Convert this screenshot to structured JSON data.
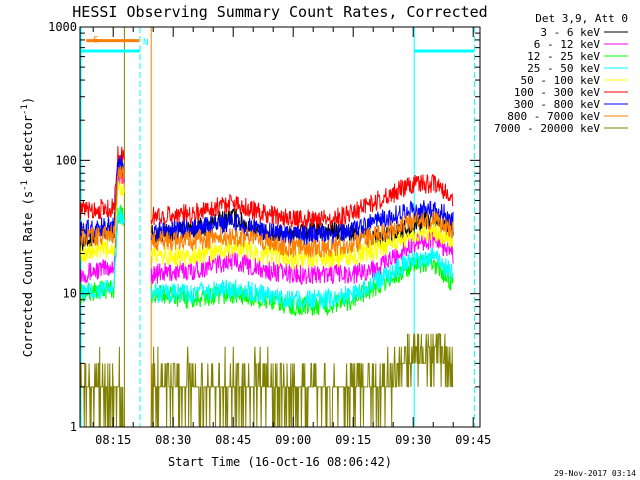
{
  "chart_data": {
    "type": "line",
    "title": "HESSI Observing Summary Count Rates, Corrected",
    "xlabel": "Start Time (16-Oct-16 08:06:42)",
    "ylabel_main": "Corrected Count Rate (s",
    "ylabel_sup1": "-1",
    "ylabel_mid": " detector",
    "ylabel_sup2": "-1",
    "ylabel_end": ")",
    "y_scale": "log",
    "ylim": [
      1,
      1000
    ],
    "xlim_minutes": [
      486.7,
      586.7
    ],
    "x_ticks": [
      {
        "label": "08:15",
        "minute": 495
      },
      {
        "label": "08:30",
        "minute": 510
      },
      {
        "label": "08:45",
        "minute": 525
      },
      {
        "label": "09:00",
        "minute": 540
      },
      {
        "label": "09:15",
        "minute": 555
      },
      {
        "label": "09:30",
        "minute": 570
      },
      {
        "label": "09:45",
        "minute": 585
      }
    ],
    "y_ticks": [
      {
        "label": "1",
        "value": 1
      },
      {
        "label": "10",
        "value": 10
      },
      {
        "label": "100",
        "value": 100
      },
      {
        "label": "1000",
        "value": 1000
      }
    ],
    "legend_header": "Det 3,9, Att 0",
    "legend_position": "right",
    "footer_date": "29-Nov-2017 03:14",
    "gaps_minutes": [
      [
        497.8,
        504.5
      ],
      [
        580.0,
        586.7
      ]
    ],
    "eclipse_minutes": [
      [
        486.7,
        501.7
      ],
      [
        570.0,
        585.3
      ]
    ],
    "flags": [
      {
        "label": "S",
        "color": "#ff7f00",
        "x_minutes": [
          488,
          501.5
        ],
        "level": 790
      },
      {
        "label": "N",
        "color": "#00ffff",
        "x_minutes": [
          486.7,
          501.7
        ],
        "level": 660
      },
      {
        "label": "",
        "color": "#00ffff",
        "x_minutes": [
          570,
          585.3
        ],
        "level": 660
      }
    ],
    "series": [
      {
        "name": "3 - 6 keV",
        "color": "#000000",
        "values": [
          [
            486.7,
            24
          ],
          [
            495.2,
            30
          ],
          [
            496.2,
            85
          ],
          [
            497.8,
            80
          ],
          [
            504.5,
            28
          ],
          [
            515,
            30
          ],
          [
            525,
            38
          ],
          [
            532,
            28
          ],
          [
            540,
            28
          ],
          [
            548,
            30
          ],
          [
            555,
            28
          ],
          [
            562,
            26
          ],
          [
            570,
            33
          ],
          [
            575,
            38
          ],
          [
            580,
            30
          ]
        ]
      },
      {
        "name": "6 - 12 keV",
        "color": "#ff00ff",
        "values": [
          [
            486.7,
            14
          ],
          [
            495.2,
            16
          ],
          [
            496.2,
            75
          ],
          [
            497.8,
            70
          ],
          [
            504.5,
            14
          ],
          [
            515,
            15
          ],
          [
            525,
            18
          ],
          [
            532,
            15
          ],
          [
            540,
            14
          ],
          [
            548,
            14
          ],
          [
            555,
            14
          ],
          [
            562,
            16
          ],
          [
            570,
            24
          ],
          [
            575,
            26
          ],
          [
            580,
            20
          ]
        ]
      },
      {
        "name": "12 - 25 keV",
        "color": "#00ff00",
        "values": [
          [
            486.7,
            10
          ],
          [
            495.2,
            11
          ],
          [
            496.2,
            40
          ],
          [
            497.8,
            38
          ],
          [
            504.5,
            10
          ],
          [
            515,
            9
          ],
          [
            525,
            10
          ],
          [
            532,
            9
          ],
          [
            540,
            8
          ],
          [
            548,
            8
          ],
          [
            555,
            9
          ],
          [
            562,
            12
          ],
          [
            570,
            16
          ],
          [
            575,
            17
          ],
          [
            580,
            12
          ]
        ]
      },
      {
        "name": "25 - 50 keV",
        "color": "#00ffff",
        "values": [
          [
            486.7,
            10
          ],
          [
            495.2,
            11
          ],
          [
            496.2,
            40
          ],
          [
            497.8,
            38
          ],
          [
            504.5,
            10
          ],
          [
            515,
            10
          ],
          [
            525,
            11
          ],
          [
            532,
            10
          ],
          [
            540,
            9
          ],
          [
            548,
            9
          ],
          [
            555,
            10
          ],
          [
            562,
            13
          ],
          [
            570,
            18
          ],
          [
            575,
            19
          ],
          [
            580,
            14
          ]
        ]
      },
      {
        "name": "50 - 100 keV",
        "color": "#ffff00",
        "values": [
          [
            486.7,
            20
          ],
          [
            495.2,
            22
          ],
          [
            496.2,
            65
          ],
          [
            497.8,
            60
          ],
          [
            504.5,
            19
          ],
          [
            515,
            19
          ],
          [
            525,
            22
          ],
          [
            532,
            20
          ],
          [
            540,
            18
          ],
          [
            548,
            18
          ],
          [
            555,
            19
          ],
          [
            562,
            22
          ],
          [
            570,
            28
          ],
          [
            575,
            30
          ],
          [
            580,
            25
          ]
        ]
      },
      {
        "name": "100 - 300 keV",
        "color": "#ff0000",
        "values": [
          [
            486.7,
            42
          ],
          [
            495.2,
            44
          ],
          [
            496.2,
            110
          ],
          [
            497.8,
            105
          ],
          [
            504.5,
            38
          ],
          [
            515,
            40
          ],
          [
            525,
            49
          ],
          [
            532,
            40
          ],
          [
            540,
            36
          ],
          [
            548,
            36
          ],
          [
            555,
            40
          ],
          [
            562,
            52
          ],
          [
            570,
            66
          ],
          [
            575,
            67
          ],
          [
            580,
            52
          ]
        ]
      },
      {
        "name": "300 - 800 keV",
        "color": "#0000ff",
        "values": [
          [
            486.7,
            30
          ],
          [
            495.2,
            32
          ],
          [
            496.2,
            95
          ],
          [
            497.8,
            90
          ],
          [
            504.5,
            29
          ],
          [
            515,
            31
          ],
          [
            525,
            34
          ],
          [
            532,
            30
          ],
          [
            540,
            27
          ],
          [
            548,
            27
          ],
          [
            555,
            30
          ],
          [
            562,
            36
          ],
          [
            570,
            42
          ],
          [
            575,
            44
          ],
          [
            580,
            36
          ]
        ]
      },
      {
        "name": "800 - 7000 keV",
        "color": "#ff7f00",
        "values": [
          [
            486.7,
            26
          ],
          [
            495.2,
            28
          ],
          [
            496.2,
            80
          ],
          [
            497.8,
            75
          ],
          [
            504.5,
            25
          ],
          [
            515,
            25
          ],
          [
            525,
            27
          ],
          [
            532,
            25
          ],
          [
            540,
            22
          ],
          [
            548,
            22
          ],
          [
            555,
            24
          ],
          [
            562,
            28
          ],
          [
            570,
            35
          ],
          [
            575,
            36
          ],
          [
            580,
            30
          ]
        ]
      },
      {
        "name": "7000 - 20000 keV",
        "color": "#808000",
        "values": [
          [
            486.7,
            2
          ],
          [
            495.2,
            2
          ],
          [
            496.2,
            2
          ],
          [
            497.8,
            1
          ],
          [
            504.5,
            2
          ],
          [
            515,
            2
          ],
          [
            525,
            2
          ],
          [
            532,
            2
          ],
          [
            540,
            2
          ],
          [
            548,
            2
          ],
          [
            555,
            2
          ],
          [
            562,
            2
          ],
          [
            570,
            4
          ],
          [
            575,
            4
          ],
          [
            580,
            3
          ]
        ]
      }
    ]
  }
}
